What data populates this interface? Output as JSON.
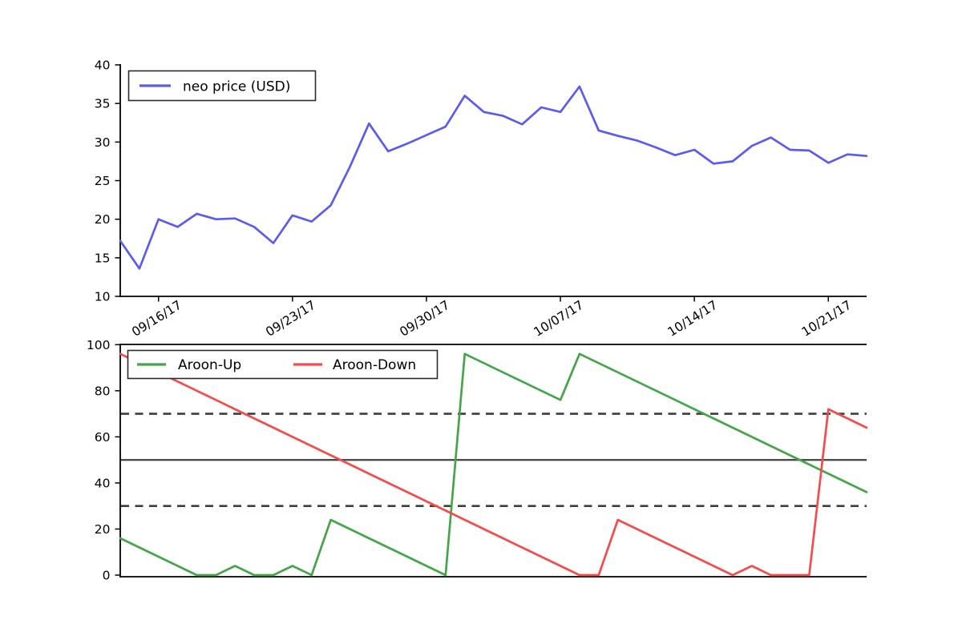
{
  "figure": {
    "background": "#ffffff"
  },
  "chart_data": [
    {
      "type": "line",
      "panel": "price",
      "title": "",
      "xlabel": "",
      "ylabel": "",
      "grid": false,
      "ylim": [
        10,
        40
      ],
      "yticks": [
        10,
        15,
        20,
        25,
        30,
        35,
        40
      ],
      "x_tick_labels": [
        "09/16/17",
        "09/23/17",
        "09/30/17",
        "10/07/17",
        "10/14/17",
        "10/21/17"
      ],
      "x_tick_indices": [
        2,
        9,
        16,
        23,
        30,
        37
      ],
      "legend": {
        "position": "upper left",
        "entries": [
          "neo price (USD)"
        ]
      },
      "series": [
        {
          "name": "neo price (USD)",
          "color": "#5a5cee",
          "values": [
            17.2,
            13.6,
            20.0,
            19.0,
            20.7,
            20.0,
            20.1,
            19.0,
            16.9,
            20.5,
            19.7,
            21.8,
            26.8,
            32.4,
            28.8,
            29.8,
            30.9,
            32.0,
            36.0,
            33.9,
            33.4,
            32.3,
            34.5,
            33.9,
            37.2,
            31.5,
            30.8,
            30.2,
            29.3,
            28.3,
            29.0,
            27.2,
            27.5,
            29.5,
            30.6,
            29.0,
            28.9,
            27.3,
            28.4,
            28.2
          ]
        }
      ]
    },
    {
      "type": "line",
      "panel": "aroon",
      "title": "",
      "xlabel": "",
      "ylabel": "",
      "grid": false,
      "ylim": [
        0,
        100
      ],
      "yticks": [
        0,
        20,
        40,
        60,
        80,
        100
      ],
      "x_tick_labels": [],
      "x_tick_indices": [],
      "legend": {
        "position": "upper left",
        "entries": [
          "Aroon-Up",
          "Aroon-Down"
        ]
      },
      "reference_lines": [
        {
          "value": 70,
          "style": "dashed",
          "color": "#3d3d3d"
        },
        {
          "value": 50,
          "style": "solid",
          "color": "#4c4c4c"
        },
        {
          "value": 30,
          "style": "dashed",
          "color": "#3d3d3d"
        }
      ],
      "series": [
        {
          "name": "Aroon-Up",
          "color": "#46a54b",
          "values": [
            16,
            12,
            8,
            4,
            0,
            0,
            4,
            0,
            0,
            4,
            0,
            24,
            20,
            16,
            12,
            8,
            4,
            0,
            96,
            92,
            88,
            84,
            80,
            76,
            96,
            92,
            88,
            84,
            80,
            76,
            72,
            68,
            64,
            60,
            56,
            52,
            48,
            44,
            40,
            36
          ]
        },
        {
          "name": "Aroon-Down",
          "color": "#f44c4c",
          "values": [
            96,
            92,
            88,
            84,
            80,
            76,
            72,
            68,
            64,
            60,
            56,
            52,
            48,
            44,
            40,
            36,
            32,
            28,
            24,
            20,
            16,
            12,
            8,
            4,
            0,
            0,
            24,
            20,
            16,
            12,
            8,
            4,
            0,
            4,
            0,
            0,
            0,
            72,
            68,
            64
          ]
        }
      ]
    }
  ]
}
